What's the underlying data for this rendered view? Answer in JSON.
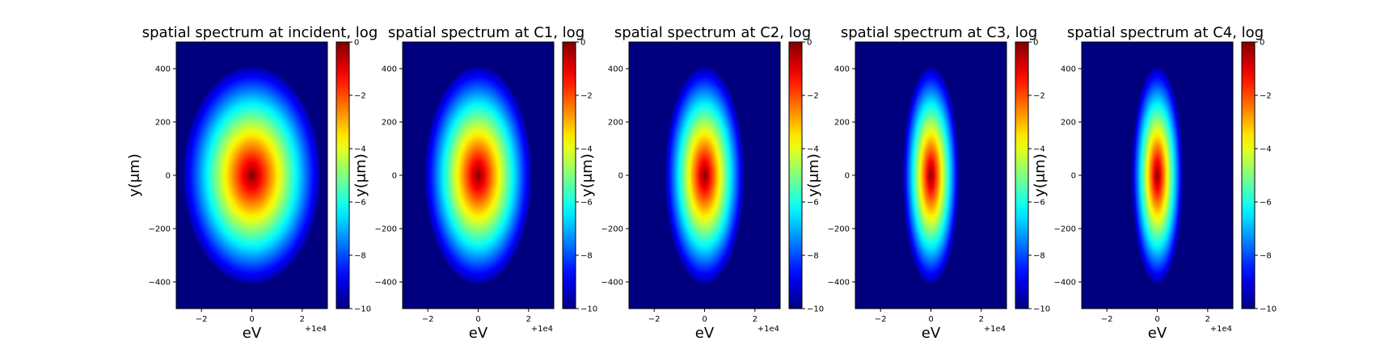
{
  "chart_data": [
    {
      "type": "heatmap",
      "title": "spatial spectrum at incident, log",
      "xlabel": "eV",
      "ylabel": "y($\\mu$m)",
      "ylabel_display": "y(μm)",
      "x_offset_label": "+1e4",
      "xlim": [
        -3,
        3
      ],
      "ylim": [
        -500,
        500
      ],
      "x_ticks": [
        -2,
        0,
        2
      ],
      "y_ticks": [
        -400,
        -200,
        0,
        200,
        400
      ],
      "colorbar": {
        "ticks": [
          0,
          -2,
          -4,
          -6,
          -8,
          -10
        ],
        "range": [
          -10,
          0
        ]
      },
      "width_scale": 1.0,
      "blob": {
        "center_x": 0,
        "center_y": 0,
        "half_width_x": 2.7,
        "half_height_y": 405
      }
    },
    {
      "type": "heatmap",
      "title": "spatial spectrum at C1, log",
      "xlabel": "eV",
      "ylabel": "y($\\mu$m)",
      "ylabel_display": "y(μm)",
      "x_offset_label": "+1e4",
      "xlim": [
        -3,
        3
      ],
      "ylim": [
        -500,
        500
      ],
      "x_ticks": [
        -2,
        0,
        2
      ],
      "y_ticks": [
        -400,
        -200,
        0,
        200,
        400
      ],
      "colorbar": {
        "ticks": [
          0,
          -2,
          -4,
          -6,
          -8,
          -10
        ],
        "range": [
          -10,
          0
        ]
      },
      "width_scale": 0.78,
      "blob": {
        "center_x": 0,
        "center_y": 0,
        "half_width_x": 2.1,
        "half_height_y": 405
      }
    },
    {
      "type": "heatmap",
      "title": "spatial spectrum at C2, log",
      "xlabel": "eV",
      "ylabel": "y($\\mu$m)",
      "ylabel_display": "y(μm)",
      "x_offset_label": "+1e4",
      "xlim": [
        -3,
        3
      ],
      "ylim": [
        -500,
        500
      ],
      "x_ticks": [
        -2,
        0,
        2
      ],
      "y_ticks": [
        -400,
        -200,
        0,
        200,
        400
      ],
      "colorbar": {
        "ticks": [
          0,
          -2,
          -4,
          -6,
          -8,
          -10
        ],
        "range": [
          -10,
          0
        ]
      },
      "width_scale": 0.58,
      "blob": {
        "center_x": 0,
        "center_y": 0,
        "half_width_x": 1.55,
        "half_height_y": 405
      }
    },
    {
      "type": "heatmap",
      "title": "spatial spectrum at C3, log",
      "xlabel": "eV",
      "ylabel": "y($\\mu$m)",
      "ylabel_display": "y(μm)",
      "x_offset_label": "+1e4",
      "xlim": [
        -3,
        3
      ],
      "ylim": [
        -500,
        500
      ],
      "x_ticks": [
        -2,
        0,
        2
      ],
      "y_ticks": [
        -400,
        -200,
        0,
        200,
        400
      ],
      "colorbar": {
        "ticks": [
          0,
          -2,
          -4,
          -6,
          -8,
          -10
        ],
        "range": [
          -10,
          0
        ]
      },
      "width_scale": 0.42,
      "blob": {
        "center_x": 0,
        "center_y": 0,
        "half_width_x": 1.1,
        "half_height_y": 405
      }
    },
    {
      "type": "heatmap",
      "title": "spatial spectrum at C4, log",
      "xlabel": "eV",
      "ylabel": "y($\\mu$m)",
      "ylabel_display": "y(μm)",
      "x_offset_label": "+1e4",
      "xlim": [
        -3,
        3
      ],
      "ylim": [
        -500,
        500
      ],
      "x_ticks": [
        -2,
        0,
        2
      ],
      "y_ticks": [
        -400,
        -200,
        0,
        200,
        400
      ],
      "colorbar": {
        "ticks": [
          0,
          -2,
          -4,
          -6,
          -8,
          -10
        ],
        "range": [
          -10,
          0
        ]
      },
      "width_scale": 0.38,
      "blob": {
        "center_x": 0,
        "center_y": 0,
        "half_width_x": 1.0,
        "half_height_y": 405
      }
    }
  ],
  "colormap": "jet",
  "colors": {
    "background": "#00007f",
    "peak": "#7f0000"
  }
}
